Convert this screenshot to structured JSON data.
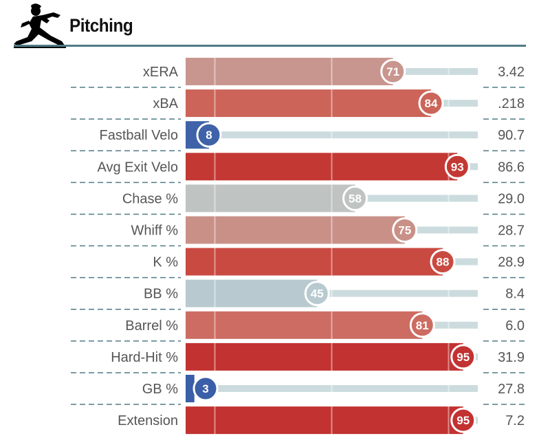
{
  "header": {
    "title": "Pitching",
    "icon": "pitcher-silhouette-icon"
  },
  "colors": {
    "rule": "#4f7a85",
    "track": "#ccdcde",
    "divider": "#4f7a85"
  },
  "chart_data": {
    "type": "bar",
    "orientation": "horizontal",
    "title": "Pitching",
    "xlim": [
      0,
      100
    ],
    "x_gridlines": [
      10,
      50,
      90
    ],
    "categories": [
      "xERA",
      "xBA",
      "Fastball Velo",
      "Avg Exit Velo",
      "Chase %",
      "Whiff %",
      "K %",
      "BB %",
      "Barrel %",
      "Hard-Hit %",
      "GB %",
      "Extension"
    ],
    "series": [
      {
        "values": [
          71,
          84,
          8,
          93,
          58,
          75,
          88,
          45,
          81,
          95,
          3,
          95
        ]
      }
    ],
    "raw_values": [
      "3.42",
      ".218",
      "90.7",
      "86.6",
      "29.0",
      "28.7",
      "28.9",
      "8.4",
      "6.0",
      "31.9",
      "27.8",
      "7.2"
    ],
    "bar_colors": [
      "#c8968f",
      "#cc6459",
      "#3f62a8",
      "#c43833",
      "#bfc4c2",
      "#c99087",
      "#c94a41",
      "#b8cacf",
      "#cc6c62",
      "#c23231",
      "#3a5ea8",
      "#c23231"
    ]
  }
}
